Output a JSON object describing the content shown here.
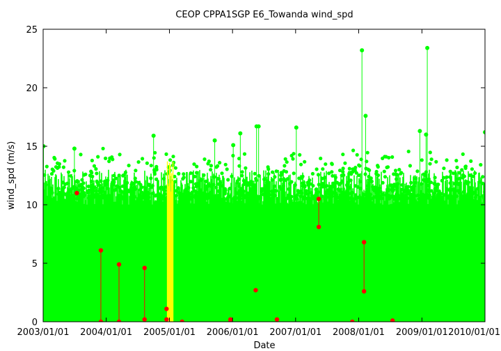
{
  "chart_data": {
    "type": "scatter",
    "title": "CEOP CPPA1SGP E6_Towanda  wind_spd",
    "xlabel": "Date",
    "ylabel": "wind_spd (m/s)",
    "ylim": [
      0,
      25
    ],
    "y_ticks": [
      "0",
      "5",
      "10",
      "15",
      "20",
      "25"
    ],
    "xlim": [
      "2003/01/01",
      "2010/01/01"
    ],
    "x_ticks": [
      "2003/01/01",
      "2004/01/01",
      "2005/01/01",
      "2006/01/01",
      "2007/01/01",
      "2008/01/01",
      "2009/01/01",
      "2010/01/01"
    ],
    "grid": false,
    "colors": {
      "main": "#00ff00",
      "highlight": "#ffff00",
      "flagged": "#ff0000",
      "axis": "#000000"
    },
    "series": [
      {
        "color": "#00ff00",
        "description_points": "dense hourly values, mostly 0-13 m/s",
        "peaks": [
          {
            "x": "2003/01/03",
            "y": 15.0
          },
          {
            "x": "2005/09/20",
            "y": 15.5
          },
          {
            "x": "2006/01/05",
            "y": 15.1
          },
          {
            "x": "2006/02/15",
            "y": 16.1
          },
          {
            "x": "2006/05/20",
            "y": 16.7
          },
          {
            "x": "2006/06/01",
            "y": 16.7
          },
          {
            "x": "2007/01/05",
            "y": 16.6
          },
          {
            "x": "2008/01/20",
            "y": 23.2
          },
          {
            "x": "2008/02/10",
            "y": 17.6
          },
          {
            "x": "2008/12/20",
            "y": 16.3
          },
          {
            "x": "2009/01/25",
            "y": 16.0
          },
          {
            "x": "2009/02/01",
            "y": 23.4
          },
          {
            "x": "2010/01/01",
            "y": 16.2
          },
          {
            "x": "2003/07/01",
            "y": 14.8
          },
          {
            "x": "2004/10/01",
            "y": 15.9
          }
        ]
      },
      {
        "color": "#ffff00",
        "range": [
          "2004/12/20",
          "2005/01/25"
        ],
        "ymax": 14.6
      },
      {
        "color": "#ff0000",
        "points": [
          {
            "x": "2003/07/15",
            "y": 11.0
          },
          {
            "x": "2003/12/01",
            "y": 6.1
          },
          {
            "x": "2003/12/01",
            "y": 0.0
          },
          {
            "x": "2004/03/15",
            "y": 4.9
          },
          {
            "x": "2004/03/15",
            "y": 0.0
          },
          {
            "x": "2004/08/10",
            "y": 4.6
          },
          {
            "x": "2004/08/10",
            "y": 0.2
          },
          {
            "x": "2004/12/15",
            "y": 1.1
          },
          {
            "x": "2004/12/15",
            "y": 0.2
          },
          {
            "x": "2005/03/15",
            "y": 0.0
          },
          {
            "x": "2005/12/20",
            "y": 0.2
          },
          {
            "x": "2005/12/20",
            "y": 0.0
          },
          {
            "x": "2006/05/15",
            "y": 2.7
          },
          {
            "x": "2006/09/15",
            "y": 0.2
          },
          {
            "x": "2007/05/15",
            "y": 10.5
          },
          {
            "x": "2007/05/15",
            "y": 8.1
          },
          {
            "x": "2007/11/25",
            "y": 0.0
          },
          {
            "x": "2008/02/01",
            "y": 6.8
          },
          {
            "x": "2008/02/01",
            "y": 2.6
          },
          {
            "x": "2008/07/15",
            "y": 0.1
          }
        ],
        "links": [
          [
            "2003/12/01",
            6.1,
            0.0
          ],
          [
            "2004/03/15",
            4.9,
            0.0
          ],
          [
            "2004/08/10",
            4.6,
            0.2
          ],
          [
            "2007/05/15",
            10.5,
            8.1
          ],
          [
            "2008/02/01",
            6.8,
            2.6
          ]
        ]
      }
    ]
  }
}
